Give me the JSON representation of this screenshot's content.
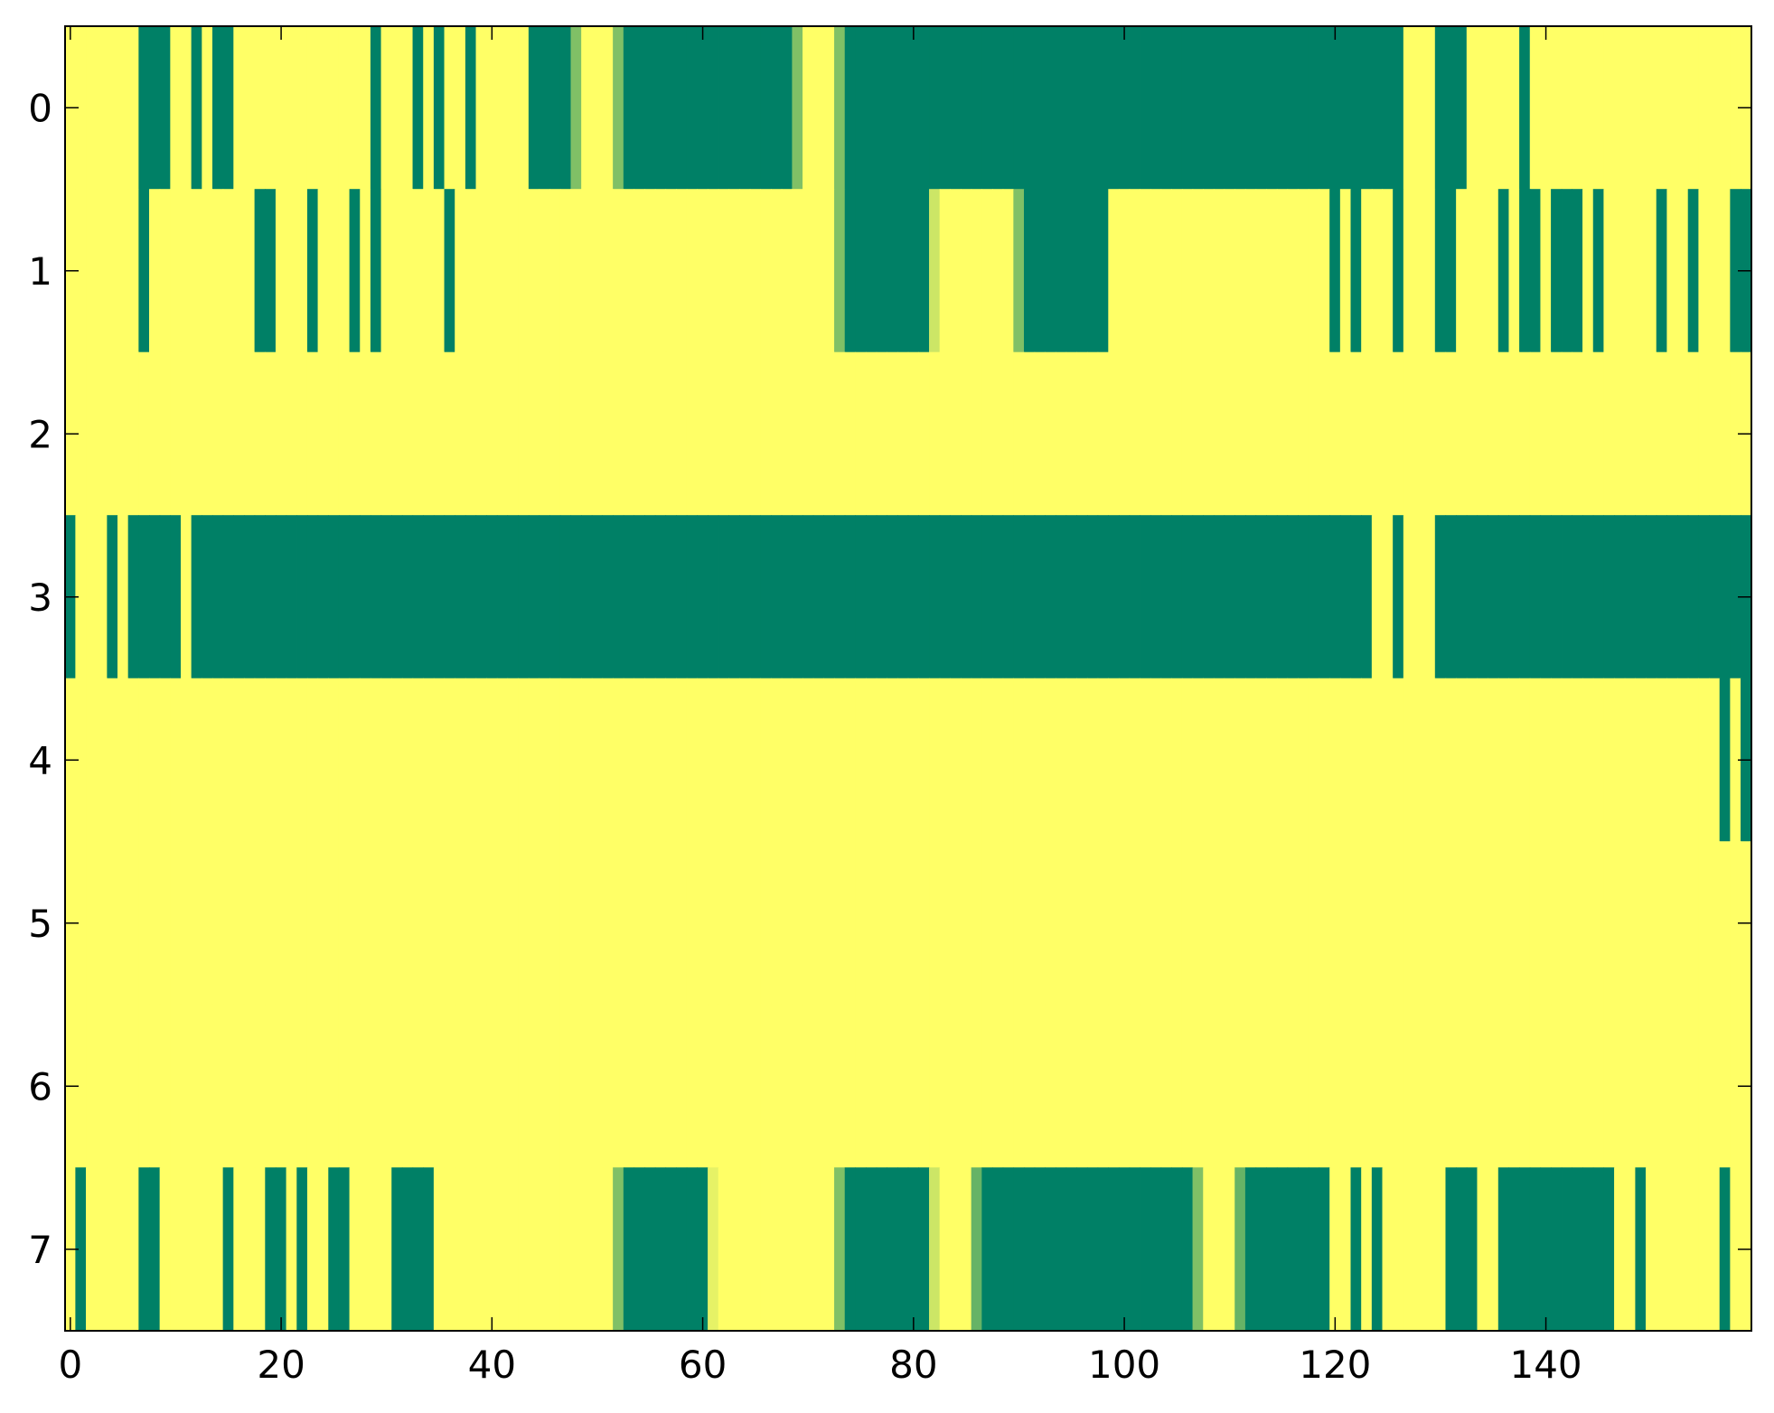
{
  "chart_data": {
    "type": "heatmap",
    "colormap": [
      "#ffff66",
      "#008066"
    ],
    "zlim": [
      0,
      1
    ],
    "xlim": [
      -0.5,
      159.5
    ],
    "ylim": [
      7.5,
      -0.5
    ],
    "xticks": [
      0,
      20,
      40,
      60,
      80,
      100,
      120,
      140
    ],
    "yticks": [
      0,
      1,
      2,
      3,
      4,
      5,
      6,
      7
    ],
    "z": [
      [
        0,
        0,
        0,
        0,
        0,
        0,
        0,
        1,
        1,
        1,
        0,
        0,
        1,
        0,
        1,
        1,
        0,
        0,
        0,
        0,
        0,
        0,
        0,
        0,
        0,
        0,
        0,
        0,
        0,
        1,
        0,
        0,
        0,
        1,
        0,
        1,
        0,
        0,
        1,
        0,
        0,
        0,
        0,
        0,
        1,
        1,
        1,
        1,
        0.5,
        0,
        0,
        0,
        0.5,
        1,
        1,
        1,
        1,
        1,
        1,
        1,
        1,
        1,
        1,
        1,
        1,
        1,
        1,
        1,
        1,
        0.5,
        0,
        0,
        0,
        0.5,
        1,
        1,
        1,
        1,
        1,
        1,
        1,
        1,
        1,
        1,
        1,
        1,
        1,
        1,
        1,
        1,
        1,
        1,
        1,
        1,
        1,
        1,
        1,
        1,
        1,
        1,
        1,
        1,
        1,
        1,
        1,
        1,
        1,
        1,
        1,
        1,
        1,
        1,
        1,
        1,
        1,
        1,
        1,
        1,
        1,
        1,
        1,
        1,
        1,
        1,
        1,
        1,
        1,
        0,
        0,
        0,
        1,
        1,
        1,
        0,
        0,
        0,
        0,
        0,
        1,
        0,
        0,
        0,
        0,
        0,
        0,
        0,
        0,
        0,
        0,
        0,
        0,
        0,
        0,
        0,
        0,
        0,
        0,
        0,
        0,
        0
      ],
      [
        0,
        0,
        0,
        0,
        0,
        0,
        0,
        1,
        0,
        0,
        0,
        0,
        0,
        0,
        0,
        0,
        0,
        0,
        1,
        1,
        0,
        0,
        0,
        1,
        0,
        0,
        0,
        1,
        0,
        1,
        0,
        0,
        0,
        0,
        0,
        0,
        1,
        0,
        0,
        0,
        0,
        0,
        0,
        0,
        0,
        0,
        0,
        0,
        0,
        0,
        0,
        0,
        0,
        0,
        0,
        0,
        0,
        0,
        0,
        0,
        0,
        0,
        0,
        0,
        0,
        0,
        0,
        0,
        0,
        0,
        0,
        0,
        0,
        0.5,
        1,
        1,
        1,
        1,
        1,
        1,
        1,
        1,
        0.2,
        0,
        0,
        0,
        0,
        0,
        0,
        0,
        0.5,
        1,
        1,
        1,
        1,
        1,
        1,
        1,
        1,
        0,
        0,
        0,
        0,
        0,
        0,
        0,
        0,
        0,
        0,
        0,
        0,
        0,
        0,
        0,
        0,
        0,
        0,
        0,
        0,
        0,
        1,
        0,
        1,
        0,
        0,
        0,
        1,
        0,
        0,
        0,
        1,
        1,
        0,
        0,
        0,
        0,
        1,
        0,
        1,
        1,
        0,
        1,
        1,
        1,
        0,
        1,
        0,
        0,
        0,
        0,
        0,
        1,
        0,
        0,
        1,
        0,
        0,
        0,
        1,
        1
      ],
      [
        0,
        0,
        0,
        0,
        0,
        0,
        0,
        0,
        0,
        0,
        0,
        0,
        0,
        0,
        0,
        0,
        0,
        0,
        0,
        0,
        0,
        0,
        0,
        0,
        0,
        0,
        0,
        0,
        0,
        0,
        0,
        0,
        0,
        0,
        0,
        0,
        0,
        0,
        0,
        0,
        0,
        0,
        0,
        0,
        0,
        0,
        0,
        0,
        0,
        0,
        0,
        0,
        0,
        0,
        0,
        0,
        0,
        0,
        0,
        0,
        0,
        0,
        0,
        0,
        0,
        0,
        0,
        0,
        0,
        0,
        0,
        0,
        0,
        0,
        0,
        0,
        0,
        0,
        0,
        0,
        0,
        0,
        0,
        0,
        0,
        0,
        0,
        0,
        0,
        0,
        0,
        0,
        0,
        0,
        0,
        0,
        0,
        0,
        0,
        0,
        0,
        0,
        0,
        0,
        0,
        0,
        0,
        0,
        0,
        0,
        0,
        0,
        0,
        0,
        0,
        0,
        0,
        0,
        0,
        0,
        0,
        0,
        0,
        0,
        0,
        0,
        0,
        0,
        0,
        0,
        0,
        0,
        0,
        0,
        0,
        0,
        0,
        0,
        0,
        0,
        0,
        0,
        0,
        0,
        0,
        0,
        0,
        0,
        0,
        0,
        0,
        0,
        0,
        0,
        0,
        0,
        0,
        0,
        0,
        0
      ],
      [
        1,
        0,
        0,
        0,
        1,
        0,
        1,
        1,
        1,
        1,
        1,
        0,
        1,
        1,
        1,
        1,
        1,
        1,
        1,
        1,
        1,
        1,
        1,
        1,
        1,
        1,
        1,
        1,
        1,
        1,
        1,
        1,
        1,
        1,
        1,
        1,
        1,
        1,
        1,
        1,
        1,
        1,
        1,
        1,
        1,
        1,
        1,
        1,
        1,
        1,
        1,
        1,
        1,
        1,
        1,
        1,
        1,
        1,
        1,
        1,
        1,
        1,
        1,
        1,
        1,
        1,
        1,
        1,
        1,
        1,
        1,
        1,
        1,
        1,
        1,
        1,
        1,
        1,
        1,
        1,
        1,
        1,
        1,
        1,
        1,
        1,
        1,
        1,
        1,
        1,
        1,
        1,
        1,
        1,
        1,
        1,
        1,
        1,
        1,
        1,
        1,
        1,
        1,
        1,
        1,
        1,
        1,
        1,
        1,
        1,
        1,
        1,
        1,
        1,
        1,
        1,
        1,
        1,
        1,
        1,
        1,
        1,
        1,
        1,
        0,
        0,
        1,
        0,
        0,
        0,
        1,
        1,
        1,
        1,
        1,
        1,
        1,
        1,
        1,
        1,
        1,
        1,
        1,
        1,
        1,
        1,
        1,
        1,
        1,
        1,
        1,
        1,
        1,
        1,
        1,
        1,
        1,
        1,
        1,
        1
      ],
      [
        0,
        0,
        0,
        0,
        0,
        0,
        0,
        0,
        0,
        0,
        0,
        0,
        0,
        0,
        0,
        0,
        0,
        0,
        0,
        0,
        0,
        0,
        0,
        0,
        0,
        0,
        0,
        0,
        0,
        0,
        0,
        0,
        0,
        0,
        0,
        0,
        0,
        0,
        0,
        0,
        0,
        0,
        0,
        0,
        0,
        0,
        0,
        0,
        0,
        0,
        0,
        0,
        0,
        0,
        0,
        0,
        0,
        0,
        0,
        0,
        0,
        0,
        0,
        0,
        0,
        0,
        0,
        0,
        0,
        0,
        0,
        0,
        0,
        0,
        0,
        0,
        0,
        0,
        0,
        0,
        0,
        0,
        0,
        0,
        0,
        0,
        0,
        0,
        0,
        0,
        0,
        0,
        0,
        0,
        0,
        0,
        0,
        0,
        0,
        0,
        0,
        0,
        0,
        0,
        0,
        0,
        0,
        0,
        0,
        0,
        0,
        0,
        0,
        0,
        0,
        0,
        0,
        0,
        0,
        0,
        0,
        0,
        0,
        0,
        0,
        0,
        0,
        0,
        0,
        0,
        0,
        0,
        0,
        0,
        0,
        0,
        0,
        0,
        0,
        0,
        0,
        0,
        0,
        0,
        0,
        0,
        0,
        0,
        0,
        0,
        0,
        0,
        0,
        0,
        0,
        0,
        0,
        1,
        0,
        1
      ],
      [
        0,
        0,
        0,
        0,
        0,
        0,
        0,
        0,
        0,
        0,
        0,
        0,
        0,
        0,
        0,
        0,
        0,
        0,
        0,
        0,
        0,
        0,
        0,
        0,
        0,
        0,
        0,
        0,
        0,
        0,
        0,
        0,
        0,
        0,
        0,
        0,
        0,
        0,
        0,
        0,
        0,
        0,
        0,
        0,
        0,
        0,
        0,
        0,
        0,
        0,
        0,
        0,
        0,
        0,
        0,
        0,
        0,
        0,
        0,
        0,
        0,
        0,
        0,
        0,
        0,
        0,
        0,
        0,
        0,
        0,
        0,
        0,
        0,
        0,
        0,
        0,
        0,
        0,
        0,
        0,
        0,
        0,
        0,
        0,
        0,
        0,
        0,
        0,
        0,
        0,
        0,
        0,
        0,
        0,
        0,
        0,
        0,
        0,
        0,
        0,
        0,
        0,
        0,
        0,
        0,
        0,
        0,
        0,
        0,
        0,
        0,
        0,
        0,
        0,
        0,
        0,
        0,
        0,
        0,
        0,
        0,
        0,
        0,
        0,
        0,
        0,
        0,
        0,
        0,
        0,
        0,
        0,
        0,
        0,
        0,
        0,
        0,
        0,
        0,
        0,
        0,
        0,
        0,
        0,
        0,
        0,
        0,
        0,
        0,
        0,
        0,
        0,
        0,
        0,
        0,
        0,
        0,
        0,
        0,
        0
      ],
      [
        0,
        0,
        0,
        0,
        0,
        0,
        0,
        0,
        0,
        0,
        0,
        0,
        0,
        0,
        0,
        0,
        0,
        0,
        0,
        0,
        0,
        0,
        0,
        0,
        0,
        0,
        0,
        0,
        0,
        0,
        0,
        0,
        0,
        0,
        0,
        0,
        0,
        0,
        0,
        0,
        0,
        0,
        0,
        0,
        0,
        0,
        0,
        0,
        0,
        0,
        0,
        0,
        0,
        0,
        0,
        0,
        0,
        0,
        0,
        0,
        0,
        0,
        0,
        0,
        0,
        0,
        0,
        0,
        0,
        0,
        0,
        0,
        0,
        0,
        0,
        0,
        0,
        0,
        0,
        0,
        0,
        0,
        0,
        0,
        0,
        0,
        0,
        0,
        0,
        0,
        0,
        0,
        0,
        0,
        0,
        0,
        0,
        0,
        0,
        0,
        0,
        0,
        0,
        0,
        0,
        0,
        0,
        0,
        0,
        0,
        0,
        0,
        0,
        0,
        0,
        0,
        0,
        0,
        0,
        0,
        0,
        0,
        0,
        0,
        0,
        0,
        0,
        0,
        0,
        0,
        0,
        0,
        0,
        0,
        0,
        0,
        0,
        0,
        0,
        0,
        0,
        0,
        0,
        0,
        0,
        0,
        0,
        0,
        0,
        0,
        0,
        0,
        0,
        0,
        0,
        0,
        0,
        0,
        0,
        0
      ],
      [
        0,
        1,
        0,
        0,
        0,
        0,
        0,
        1,
        1,
        0,
        0,
        0,
        0,
        0,
        0,
        1,
        0,
        0,
        0,
        1,
        1,
        0,
        1,
        0,
        0,
        1,
        1,
        0,
        0,
        0,
        0,
        1,
        1,
        1,
        1,
        0,
        0,
        0,
        0,
        0,
        0,
        0,
        0,
        0,
        0,
        0,
        0,
        0,
        0,
        0,
        0,
        0,
        0.5,
        1,
        1,
        1,
        1,
        1,
        1,
        1,
        1,
        0.1,
        0,
        0,
        0,
        0,
        0,
        0,
        0,
        0,
        0,
        0,
        0,
        0.5,
        1,
        1,
        1,
        1,
        1,
        1,
        1,
        1,
        0.2,
        0,
        0,
        0,
        0.6,
        1,
        1,
        1,
        1,
        1,
        1,
        1,
        1,
        1,
        1,
        1,
        1,
        1,
        1,
        1,
        1,
        1,
        1,
        1,
        1,
        0.5,
        0,
        0,
        0,
        0.6,
        1,
        1,
        1,
        1,
        1,
        1,
        1,
        1,
        0,
        0,
        1,
        0,
        1,
        0,
        0,
        0,
        0,
        0,
        0,
        1,
        1,
        1,
        0,
        0,
        1,
        1,
        1,
        1,
        1,
        1,
        1,
        1,
        1,
        1,
        1,
        0,
        0,
        1,
        0,
        0,
        0,
        0,
        0,
        0,
        0,
        1,
        0,
        0
      ]
    ]
  }
}
